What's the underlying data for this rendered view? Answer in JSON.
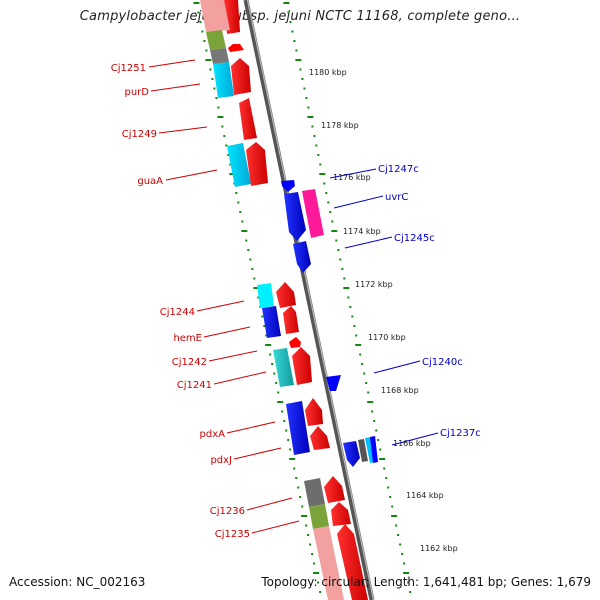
{
  "title": "Campylobacter jejuni subsp. jejuni NCTC 11168, complete geno...",
  "footer": {
    "accession": "Accession: NC_002163",
    "summary": "Topology: circular; Length: 1,641,481 bp; Genes: 1,679"
  },
  "colors": {
    "forward": "#ff0000",
    "reverse": "#0000ff",
    "backbone": "#888888",
    "tick": "#118811"
  },
  "scale_labels": [
    "1180 kbp",
    "1178 kbp",
    "1176 kbp",
    "1174 kbp",
    "1172 kbp",
    "1170 kbp",
    "1168 kbp",
    "1166 kbp",
    "1164 kbp",
    "1162 kbp"
  ],
  "left_gene_labels": [
    "Cj1251",
    "purD",
    "Cj1249",
    "guaA",
    "Cj1244",
    "hemE",
    "Cj1242",
    "Cj1241",
    "pdxA",
    "pdxJ",
    "Cj1236",
    "Cj1235"
  ],
  "right_gene_labels": [
    "Cj1247c",
    "uvrC",
    "Cj1245c",
    "Cj1240c",
    "Cj1237c"
  ]
}
